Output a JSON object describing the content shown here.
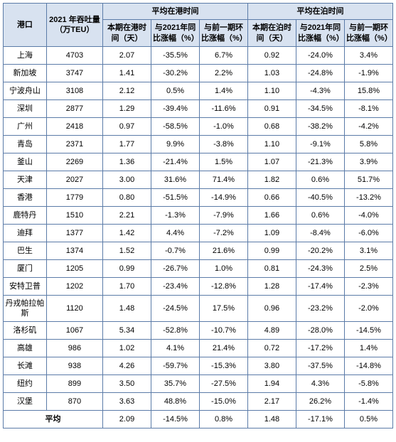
{
  "header": {
    "port": "港口",
    "throughput": "2021 年吞吐量（万TEU）",
    "group1": "平均在港时间",
    "group2": "平均在泊时间",
    "g1_c1": "本期在港时间（天）",
    "g1_c2": "与2021年同比涨幅（%）",
    "g1_c3": "与前一期环比涨幅（%）",
    "g2_c1": "本期在泊时间（天）",
    "g2_c2": "与2021年同比涨幅（%）",
    "g2_c3": "与前一期环比涨幅（%）"
  },
  "rows": [
    {
      "port": "上海",
      "teu": "4703",
      "a1": "2.07",
      "a2": "-35.5%",
      "a3": "6.7%",
      "b1": "0.92",
      "b2": "-24.0%",
      "b3": "3.4%"
    },
    {
      "port": "新加坡",
      "teu": "3747",
      "a1": "1.41",
      "a2": "-30.2%",
      "a3": "2.2%",
      "b1": "1.03",
      "b2": "-24.8%",
      "b3": "-1.9%"
    },
    {
      "port": "宁波舟山",
      "teu": "3108",
      "a1": "2.12",
      "a2": "0.5%",
      "a3": "1.4%",
      "b1": "1.10",
      "b2": "-4.3%",
      "b3": "15.8%"
    },
    {
      "port": "深圳",
      "teu": "2877",
      "a1": "1.29",
      "a2": "-39.4%",
      "a3": "-11.6%",
      "b1": "0.91",
      "b2": "-34.5%",
      "b3": "-8.1%"
    },
    {
      "port": "广州",
      "teu": "2418",
      "a1": "0.97",
      "a2": "-58.5%",
      "a3": "-1.0%",
      "b1": "0.68",
      "b2": "-38.2%",
      "b3": "-4.2%"
    },
    {
      "port": "青岛",
      "teu": "2371",
      "a1": "1.77",
      "a2": "9.9%",
      "a3": "-3.8%",
      "b1": "1.10",
      "b2": "-9.1%",
      "b3": "5.8%"
    },
    {
      "port": "釜山",
      "teu": "2269",
      "a1": "1.36",
      "a2": "-21.4%",
      "a3": "1.5%",
      "b1": "1.07",
      "b2": "-21.3%",
      "b3": "3.9%"
    },
    {
      "port": "天津",
      "teu": "2027",
      "a1": "3.00",
      "a2": "31.6%",
      "a3": "71.4%",
      "b1": "1.82",
      "b2": "0.6%",
      "b3": "51.7%"
    },
    {
      "port": "香港",
      "teu": "1779",
      "a1": "0.80",
      "a2": "-51.5%",
      "a3": "-14.9%",
      "b1": "0.66",
      "b2": "-40.5%",
      "b3": "-13.2%"
    },
    {
      "port": "鹿特丹",
      "teu": "1510",
      "a1": "2.21",
      "a2": "-1.3%",
      "a3": "-7.9%",
      "b1": "1.66",
      "b2": "0.6%",
      "b3": "-4.0%"
    },
    {
      "port": "迪拜",
      "teu": "1377",
      "a1": "1.42",
      "a2": "4.4%",
      "a3": "-7.2%",
      "b1": "1.09",
      "b2": "-8.4%",
      "b3": "-6.0%"
    },
    {
      "port": "巴生",
      "teu": "1374",
      "a1": "1.52",
      "a2": "-0.7%",
      "a3": "21.6%",
      "b1": "0.99",
      "b2": "-20.2%",
      "b3": "3.1%"
    },
    {
      "port": "厦门",
      "teu": "1205",
      "a1": "0.99",
      "a2": "-26.7%",
      "a3": "1.0%",
      "b1": "0.81",
      "b2": "-24.3%",
      "b3": "2.5%"
    },
    {
      "port": "安特卫普",
      "teu": "1202",
      "a1": "1.70",
      "a2": "-23.4%",
      "a3": "-12.8%",
      "b1": "1.28",
      "b2": "-17.4%",
      "b3": "-2.3%"
    },
    {
      "port": "丹戎帕拉帕斯",
      "teu": "1120",
      "a1": "1.48",
      "a2": "-24.5%",
      "a3": "17.5%",
      "b1": "0.96",
      "b2": "-23.2%",
      "b3": "-2.0%"
    },
    {
      "port": "洛杉矶",
      "teu": "1067",
      "a1": "5.34",
      "a2": "-52.8%",
      "a3": "-10.7%",
      "b1": "4.89",
      "b2": "-28.0%",
      "b3": "-14.5%"
    },
    {
      "port": "高雄",
      "teu": "986",
      "a1": "1.02",
      "a2": "4.1%",
      "a3": "21.4%",
      "b1": "0.72",
      "b2": "-17.2%",
      "b3": "1.4%"
    },
    {
      "port": "长滩",
      "teu": "938",
      "a1": "4.26",
      "a2": "-59.7%",
      "a3": "-15.3%",
      "b1": "3.80",
      "b2": "-37.5%",
      "b3": "-14.8%"
    },
    {
      "port": "纽约",
      "teu": "899",
      "a1": "3.50",
      "a2": "35.7%",
      "a3": "-27.5%",
      "b1": "1.94",
      "b2": "4.3%",
      "b3": "-5.8%"
    },
    {
      "port": "汉堡",
      "teu": "870",
      "a1": "3.63",
      "a2": "48.8%",
      "a3": "-15.0%",
      "b1": "2.17",
      "b2": "26.2%",
      "b3": "-1.4%"
    }
  ],
  "avg": {
    "label": "平均",
    "a1": "2.09",
    "a2": "-14.5%",
    "a3": "0.8%",
    "b1": "1.48",
    "b2": "-17.1%",
    "b3": "0.5%"
  },
  "style": {
    "header_bg": "#d8e2f0",
    "border_color": "#5b7ba8",
    "text_color": "#000000",
    "font_size": 11
  }
}
